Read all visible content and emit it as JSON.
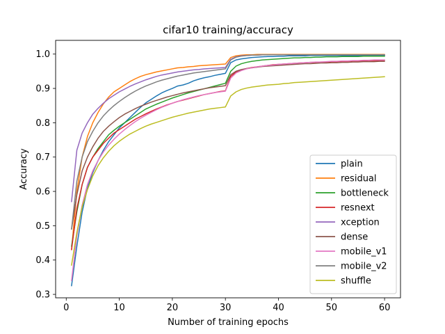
{
  "chart_data": {
    "type": "line",
    "title": "cifar10 training/accuracy",
    "xlabel": "Number of training epochs",
    "ylabel": "Accuracy",
    "xlim": [
      -2,
      63
    ],
    "ylim": [
      0.29,
      1.04
    ],
    "xticks": [
      0,
      10,
      20,
      30,
      40,
      50,
      60
    ],
    "yticks": [
      0.3,
      0.4,
      0.5,
      0.6,
      0.7,
      0.8,
      0.9,
      1.0
    ],
    "legend_position": "lower-right",
    "grid": false,
    "x": [
      1,
      2,
      3,
      4,
      5,
      6,
      7,
      8,
      9,
      10,
      11,
      12,
      13,
      14,
      15,
      16,
      17,
      18,
      19,
      20,
      21,
      22,
      23,
      24,
      25,
      26,
      27,
      28,
      29,
      30,
      31,
      32,
      33,
      34,
      35,
      36,
      37,
      38,
      39,
      40,
      41,
      42,
      43,
      44,
      45,
      46,
      47,
      48,
      49,
      50,
      51,
      52,
      53,
      54,
      55,
      56,
      57,
      58,
      59,
      60
    ],
    "series": [
      {
        "name": "plain",
        "color": "#1f77b4",
        "values": [
          0.325,
          0.44,
          0.54,
          0.61,
          0.655,
          0.69,
          0.72,
          0.745,
          0.765,
          0.785,
          0.8,
          0.815,
          0.83,
          0.845,
          0.858,
          0.868,
          0.878,
          0.887,
          0.894,
          0.9,
          0.907,
          0.91,
          0.915,
          0.922,
          0.927,
          0.931,
          0.934,
          0.938,
          0.941,
          0.944,
          0.975,
          0.983,
          0.986,
          0.988,
          0.99,
          0.991,
          0.992,
          0.993,
          0.993,
          0.994,
          0.994,
          0.995,
          0.995,
          0.995,
          0.995,
          0.996,
          0.996,
          0.996,
          0.996,
          0.996,
          0.996,
          0.996,
          0.996,
          0.996,
          0.996,
          0.996,
          0.996,
          0.996,
          0.996,
          0.996
        ]
      },
      {
        "name": "residual",
        "color": "#ff7f0e",
        "values": [
          0.43,
          0.6,
          0.7,
          0.76,
          0.8,
          0.83,
          0.855,
          0.875,
          0.89,
          0.9,
          0.91,
          0.92,
          0.928,
          0.935,
          0.94,
          0.944,
          0.948,
          0.951,
          0.954,
          0.957,
          0.96,
          0.961,
          0.963,
          0.964,
          0.966,
          0.967,
          0.968,
          0.969,
          0.97,
          0.971,
          0.99,
          0.995,
          0.997,
          0.998,
          0.998,
          0.999,
          0.999,
          0.999,
          0.999,
          0.999,
          0.999,
          0.999,
          0.999,
          0.999,
          0.999,
          0.999,
          0.999,
          0.999,
          0.999,
          0.999,
          0.999,
          0.999,
          0.999,
          0.999,
          0.999,
          0.999,
          0.999,
          0.999,
          0.999,
          0.999
        ]
      },
      {
        "name": "bottleneck",
        "color": "#2ca02c",
        "values": [
          0.44,
          0.54,
          0.62,
          0.67,
          0.7,
          0.725,
          0.745,
          0.765,
          0.778,
          0.79,
          0.8,
          0.81,
          0.82,
          0.83,
          0.84,
          0.847,
          0.854,
          0.86,
          0.866,
          0.872,
          0.877,
          0.882,
          0.887,
          0.891,
          0.895,
          0.899,
          0.903,
          0.907,
          0.911,
          0.915,
          0.95,
          0.965,
          0.972,
          0.976,
          0.979,
          0.981,
          0.983,
          0.984,
          0.985,
          0.986,
          0.987,
          0.988,
          0.989,
          0.989,
          0.99,
          0.99,
          0.991,
          0.991,
          0.992,
          0.992,
          0.992,
          0.993,
          0.993,
          0.993,
          0.993,
          0.994,
          0.994,
          0.994,
          0.994,
          0.994
        ]
      },
      {
        "name": "resnext",
        "color": "#d62728",
        "values": [
          0.43,
          0.55,
          0.62,
          0.67,
          0.7,
          0.72,
          0.74,
          0.755,
          0.77,
          0.78,
          0.79,
          0.8,
          0.81,
          0.818,
          0.826,
          0.833,
          0.84,
          0.846,
          0.852,
          0.857,
          0.862,
          0.866,
          0.87,
          0.874,
          0.878,
          0.882,
          0.885,
          0.888,
          0.891,
          0.893,
          0.935,
          0.948,
          0.954,
          0.958,
          0.961,
          0.963,
          0.965,
          0.967,
          0.969,
          0.97,
          0.971,
          0.972,
          0.973,
          0.974,
          0.975,
          0.976,
          0.976,
          0.977,
          0.977,
          0.978,
          0.978,
          0.979,
          0.979,
          0.98,
          0.98,
          0.98,
          0.981,
          0.981,
          0.981,
          0.982
        ]
      },
      {
        "name": "xception",
        "color": "#9467bd",
        "values": [
          0.57,
          0.72,
          0.77,
          0.8,
          0.825,
          0.842,
          0.857,
          0.87,
          0.88,
          0.89,
          0.898,
          0.906,
          0.913,
          0.919,
          0.925,
          0.93,
          0.935,
          0.939,
          0.942,
          0.945,
          0.948,
          0.95,
          0.952,
          0.954,
          0.955,
          0.957,
          0.958,
          0.959,
          0.96,
          0.961,
          0.985,
          0.992,
          0.995,
          0.996,
          0.997,
          0.997,
          0.998,
          0.998,
          0.998,
          0.998,
          0.998,
          0.998,
          0.998,
          0.998,
          0.998,
          0.998,
          0.998,
          0.998,
          0.998,
          0.998,
          0.998,
          0.998,
          0.998,
          0.998,
          0.998,
          0.998,
          0.998,
          0.998,
          0.998,
          0.998
        ]
      },
      {
        "name": "dense",
        "color": "#8c564b",
        "values": [
          0.49,
          0.59,
          0.66,
          0.7,
          0.73,
          0.755,
          0.775,
          0.79,
          0.803,
          0.815,
          0.825,
          0.833,
          0.841,
          0.848,
          0.854,
          0.86,
          0.865,
          0.87,
          0.875,
          0.879,
          0.883,
          0.887,
          0.89,
          0.893,
          0.896,
          0.899,
          0.902,
          0.904,
          0.906,
          0.908,
          0.94,
          0.95,
          0.955,
          0.958,
          0.96,
          0.962,
          0.964,
          0.965,
          0.966,
          0.967,
          0.968,
          0.969,
          0.97,
          0.971,
          0.972,
          0.972,
          0.973,
          0.974,
          0.974,
          0.975,
          0.975,
          0.976,
          0.976,
          0.977,
          0.977,
          0.978,
          0.978,
          0.978,
          0.979,
          0.979
        ]
      },
      {
        "name": "mobile_v1",
        "color": "#e377c2",
        "values": [
          0.34,
          0.47,
          0.56,
          0.62,
          0.66,
          0.69,
          0.715,
          0.735,
          0.752,
          0.767,
          0.78,
          0.792,
          0.803,
          0.813,
          0.822,
          0.83,
          0.838,
          0.845,
          0.851,
          0.857,
          0.862,
          0.867,
          0.871,
          0.875,
          0.879,
          0.882,
          0.885,
          0.888,
          0.89,
          0.892,
          0.93,
          0.945,
          0.952,
          0.957,
          0.96,
          0.963,
          0.965,
          0.967,
          0.968,
          0.97,
          0.971,
          0.972,
          0.973,
          0.974,
          0.975,
          0.976,
          0.977,
          0.977,
          0.978,
          0.979,
          0.979,
          0.98,
          0.98,
          0.981,
          0.981,
          0.982,
          0.982,
          0.983,
          0.983,
          0.983
        ]
      },
      {
        "name": "mobile_v2",
        "color": "#7f7f7f",
        "values": [
          0.49,
          0.63,
          0.7,
          0.745,
          0.775,
          0.8,
          0.82,
          0.836,
          0.85,
          0.862,
          0.873,
          0.883,
          0.892,
          0.9,
          0.907,
          0.913,
          0.919,
          0.924,
          0.928,
          0.932,
          0.936,
          0.939,
          0.942,
          0.945,
          0.947,
          0.949,
          0.951,
          0.953,
          0.955,
          0.957,
          0.983,
          0.991,
          0.994,
          0.996,
          0.997,
          0.997,
          0.998,
          0.998,
          0.998,
          0.998,
          0.998,
          0.998,
          0.998,
          0.998,
          0.998,
          0.998,
          0.998,
          0.998,
          0.998,
          0.998,
          0.998,
          0.998,
          0.998,
          0.998,
          0.998,
          0.998,
          0.998,
          0.998,
          0.998,
          0.998
        ]
      },
      {
        "name": "shuffle",
        "color": "#bcbd22",
        "values": [
          0.385,
          0.48,
          0.555,
          0.605,
          0.645,
          0.675,
          0.698,
          0.717,
          0.733,
          0.746,
          0.757,
          0.767,
          0.775,
          0.783,
          0.79,
          0.796,
          0.801,
          0.806,
          0.811,
          0.816,
          0.82,
          0.824,
          0.828,
          0.831,
          0.834,
          0.837,
          0.84,
          0.842,
          0.844,
          0.846,
          0.878,
          0.89,
          0.897,
          0.901,
          0.904,
          0.906,
          0.908,
          0.91,
          0.911,
          0.912,
          0.914,
          0.915,
          0.917,
          0.918,
          0.919,
          0.92,
          0.921,
          0.922,
          0.923,
          0.924,
          0.925,
          0.926,
          0.927,
          0.928,
          0.929,
          0.93,
          0.931,
          0.932,
          0.933,
          0.934
        ]
      }
    ]
  }
}
